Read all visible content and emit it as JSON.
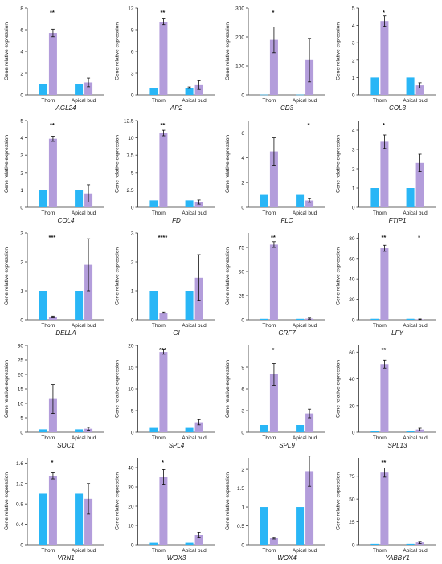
{
  "figure": {
    "ylabel": "Gene relative expression",
    "categories": [
      "Thorn",
      "Apical bud"
    ],
    "colors": {
      "control": "#29B6F6",
      "treatment": "#B39DDB",
      "axis": "#333333",
      "text": "#111111"
    }
  },
  "chart_data": [
    {
      "type": "bar",
      "title": "AGL24",
      "categories": [
        "Thorn",
        "Apical bud"
      ],
      "ylabel": "Gene relative expression",
      "ylim": [
        0,
        8
      ],
      "yticks": [
        0,
        2,
        4,
        6,
        8
      ],
      "series": [
        {
          "values": [
            1.0,
            1.0
          ],
          "errors": [
            0,
            0
          ]
        },
        {
          "values": [
            5.7,
            1.15
          ],
          "errors": [
            0.35,
            0.4
          ]
        }
      ],
      "significance": [
        "**",
        ""
      ]
    },
    {
      "type": "bar",
      "title": "AP2",
      "categories": [
        "Thorn",
        "Apical bud"
      ],
      "ylabel": "Gene relative expression",
      "ylim": [
        0,
        12
      ],
      "yticks": [
        0,
        3,
        6,
        9,
        12
      ],
      "series": [
        {
          "values": [
            1.0,
            1.0
          ],
          "errors": [
            0,
            0.1
          ]
        },
        {
          "values": [
            10.1,
            1.35
          ],
          "errors": [
            0.4,
            0.6
          ]
        }
      ],
      "significance": [
        "**",
        ""
      ]
    },
    {
      "type": "bar",
      "title": "CD3",
      "categories": [
        "Thorn",
        "Apical bud"
      ],
      "ylabel": "Gene relative expression",
      "ylim": [
        0,
        300
      ],
      "yticks": [
        0,
        100,
        200,
        300
      ],
      "series": [
        {
          "values": [
            1.0,
            1.0
          ],
          "errors": [
            0,
            0
          ]
        },
        {
          "values": [
            190,
            120
          ],
          "errors": [
            45,
            75
          ]
        }
      ],
      "significance": [
        "*",
        ""
      ]
    },
    {
      "type": "bar",
      "title": "COL3",
      "categories": [
        "Thorn",
        "Apical bud"
      ],
      "ylabel": "Gene relative expression",
      "ylim": [
        0,
        5
      ],
      "yticks": [
        0,
        1,
        2,
        3,
        4,
        5
      ],
      "series": [
        {
          "values": [
            1.0,
            1.0
          ],
          "errors": [
            0,
            0
          ]
        },
        {
          "values": [
            4.25,
            0.55
          ],
          "errors": [
            0.3,
            0.15
          ]
        }
      ],
      "significance": [
        "*",
        ""
      ]
    },
    {
      "type": "bar",
      "title": "COL4",
      "categories": [
        "Thorn",
        "Apical bud"
      ],
      "ylabel": "Gene relative expression",
      "ylim": [
        0,
        5
      ],
      "yticks": [
        0,
        1,
        2,
        3,
        4,
        5
      ],
      "series": [
        {
          "values": [
            1.0,
            1.0
          ],
          "errors": [
            0,
            0
          ]
        },
        {
          "values": [
            3.95,
            0.8
          ],
          "errors": [
            0.15,
            0.5
          ]
        }
      ],
      "significance": [
        "**",
        ""
      ]
    },
    {
      "type": "bar",
      "title": "FD",
      "categories": [
        "Thorn",
        "Apical bud"
      ],
      "ylabel": "Gene relative expression",
      "ylim": [
        0,
        12.5
      ],
      "yticks": [
        0,
        2.5,
        5.0,
        7.5,
        10.0,
        12.5
      ],
      "series": [
        {
          "values": [
            1.0,
            1.0
          ],
          "errors": [
            0,
            0
          ]
        },
        {
          "values": [
            10.7,
            0.75
          ],
          "errors": [
            0.4,
            0.3
          ]
        }
      ],
      "significance": [
        "**",
        ""
      ]
    },
    {
      "type": "bar",
      "title": "FLC",
      "categories": [
        "Thorn",
        "Apical bud"
      ],
      "ylabel": "Gene relative expression",
      "ylim": [
        0,
        7
      ],
      "yticks": [
        0,
        2,
        4,
        6
      ],
      "series": [
        {
          "values": [
            1.0,
            1.0
          ],
          "errors": [
            0,
            0
          ]
        },
        {
          "values": [
            4.5,
            0.55
          ],
          "errors": [
            1.1,
            0.15
          ]
        }
      ],
      "significance": [
        "",
        "*"
      ]
    },
    {
      "type": "bar",
      "title": "FTIP1",
      "categories": [
        "Thorn",
        "Apical bud"
      ],
      "ylabel": "Gene relative expression",
      "ylim": [
        0,
        4.5
      ],
      "yticks": [
        0,
        1,
        2,
        3,
        4
      ],
      "series": [
        {
          "values": [
            1.0,
            1.0
          ],
          "errors": [
            0,
            0
          ]
        },
        {
          "values": [
            3.4,
            2.3
          ],
          "errors": [
            0.35,
            0.45
          ]
        }
      ],
      "significance": [
        "*",
        ""
      ]
    },
    {
      "type": "bar",
      "title": "DELLA",
      "categories": [
        "Thorn",
        "Apical bud"
      ],
      "ylabel": "Gene relative expression",
      "ylim": [
        0,
        3
      ],
      "yticks": [
        0,
        1,
        2,
        3
      ],
      "series": [
        {
          "values": [
            1.0,
            1.0
          ],
          "errors": [
            0,
            0
          ]
        },
        {
          "values": [
            0.1,
            1.9
          ],
          "errors": [
            0.03,
            0.9
          ]
        }
      ],
      "significance": [
        "***",
        ""
      ]
    },
    {
      "type": "bar",
      "title": "GI",
      "categories": [
        "Thorn",
        "Apical bud"
      ],
      "ylabel": "Gene relative expression",
      "ylim": [
        0,
        3
      ],
      "yticks": [
        0,
        1,
        2,
        3
      ],
      "series": [
        {
          "values": [
            1.0,
            1.0
          ],
          "errors": [
            0,
            0
          ]
        },
        {
          "values": [
            0.25,
            1.45
          ],
          "errors": [
            0.02,
            0.8
          ]
        }
      ],
      "significance": [
        "****",
        ""
      ]
    },
    {
      "type": "bar",
      "title": "GRF7",
      "categories": [
        "Thorn",
        "Apical bud"
      ],
      "ylabel": "Gene relative expression",
      "ylim": [
        0,
        90
      ],
      "yticks": [
        0,
        25,
        50,
        75
      ],
      "series": [
        {
          "values": [
            1.0,
            1.0
          ],
          "errors": [
            0,
            0
          ]
        },
        {
          "values": [
            78,
            1.2
          ],
          "errors": [
            3,
            0.6
          ]
        }
      ],
      "significance": [
        "**",
        ""
      ]
    },
    {
      "type": "bar",
      "title": "LFY",
      "categories": [
        "Thorn",
        "Apical bud"
      ],
      "ylabel": "Gene relative expression",
      "ylim": [
        0,
        85
      ],
      "yticks": [
        0,
        20,
        40,
        60,
        80
      ],
      "series": [
        {
          "values": [
            1.0,
            1.0
          ],
          "errors": [
            0,
            0
          ]
        },
        {
          "values": [
            70,
            0.5
          ],
          "errors": [
            3,
            0.3
          ]
        }
      ],
      "significance": [
        "**",
        "*"
      ]
    },
    {
      "type": "bar",
      "title": "SOC1",
      "categories": [
        "Thorn",
        "Apical bud"
      ],
      "ylabel": "Gene relative expression",
      "ylim": [
        0,
        30
      ],
      "yticks": [
        0,
        5,
        10,
        15,
        20,
        25,
        30
      ],
      "series": [
        {
          "values": [
            1.0,
            1.0
          ],
          "errors": [
            0,
            0
          ]
        },
        {
          "values": [
            11.5,
            1.2
          ],
          "errors": [
            5,
            0.5
          ]
        }
      ],
      "significance": [
        "",
        ""
      ]
    },
    {
      "type": "bar",
      "title": "SPL4",
      "categories": [
        "Thorn",
        "Apical bud"
      ],
      "ylabel": "Gene relative expression",
      "ylim": [
        0,
        20
      ],
      "yticks": [
        0,
        5,
        10,
        15,
        20
      ],
      "series": [
        {
          "values": [
            1.0,
            1.0
          ],
          "errors": [
            0,
            0
          ]
        },
        {
          "values": [
            18.5,
            2.3
          ],
          "errors": [
            0.5,
            0.6
          ]
        }
      ],
      "significance": [
        "***",
        ""
      ]
    },
    {
      "type": "bar",
      "title": "SPL9",
      "categories": [
        "Thorn",
        "Apical bud"
      ],
      "ylabel": "Gene relative expression",
      "ylim": [
        0,
        12
      ],
      "yticks": [
        0,
        3,
        6,
        9
      ],
      "series": [
        {
          "values": [
            1.0,
            1.0
          ],
          "errors": [
            0,
            0
          ]
        },
        {
          "values": [
            8.0,
            2.6
          ],
          "errors": [
            1.5,
            0.6
          ]
        }
      ],
      "significance": [
        "*",
        ""
      ]
    },
    {
      "type": "bar",
      "title": "SPL13",
      "categories": [
        "Thorn",
        "Apical bud"
      ],
      "ylabel": "Gene relative expression",
      "ylim": [
        0,
        65
      ],
      "yticks": [
        0,
        20,
        40,
        60
      ],
      "series": [
        {
          "values": [
            1.0,
            1.0
          ],
          "errors": [
            0,
            0
          ]
        },
        {
          "values": [
            51,
            2.0
          ],
          "errors": [
            3,
            1
          ]
        }
      ],
      "significance": [
        "**",
        ""
      ]
    },
    {
      "type": "bar",
      "title": "VRN1",
      "categories": [
        "Thorn",
        "Apical bud"
      ],
      "ylabel": "Gene relative expression",
      "ylim": [
        0,
        1.7
      ],
      "yticks": [
        0,
        0.4,
        0.8,
        1.2,
        1.6
      ],
      "series": [
        {
          "values": [
            1.0,
            1.0
          ],
          "errors": [
            0,
            0
          ]
        },
        {
          "values": [
            1.35,
            0.9
          ],
          "errors": [
            0.06,
            0.3
          ]
        }
      ],
      "significance": [
        "*",
        ""
      ]
    },
    {
      "type": "bar",
      "title": "WOX3",
      "categories": [
        "Thorn",
        "Apical bud"
      ],
      "ylabel": "Gene relative expression",
      "ylim": [
        0,
        45
      ],
      "yticks": [
        0,
        10,
        20,
        30,
        40
      ],
      "series": [
        {
          "values": [
            1.0,
            1.0
          ],
          "errors": [
            0,
            0
          ]
        },
        {
          "values": [
            35,
            5
          ],
          "errors": [
            4,
            1.5
          ]
        }
      ],
      "significance": [
        "*",
        ""
      ]
    },
    {
      "type": "bar",
      "title": "WOX4",
      "categories": [
        "Thorn",
        "Apical bud"
      ],
      "ylabel": "Gene relative expression",
      "ylim": [
        0,
        2.3
      ],
      "yticks": [
        0,
        0.5,
        1.0,
        1.5,
        2.0
      ],
      "series": [
        {
          "values": [
            1.0,
            1.0
          ],
          "errors": [
            0,
            0
          ]
        },
        {
          "values": [
            0.17,
            1.95
          ],
          "errors": [
            0.02,
            0.4
          ]
        }
      ],
      "significance": [
        "",
        ""
      ]
    },
    {
      "type": "bar",
      "title": "YABBY1",
      "categories": [
        "Thorn",
        "Apical bud"
      ],
      "ylabel": "Gene relative expression",
      "ylim": [
        0,
        95
      ],
      "yticks": [
        0,
        25,
        50,
        75
      ],
      "series": [
        {
          "values": [
            1.0,
            1.0
          ],
          "errors": [
            0,
            0
          ]
        },
        {
          "values": [
            79,
            2.5
          ],
          "errors": [
            5,
            1.2
          ]
        }
      ],
      "significance": [
        "**",
        ""
      ]
    }
  ]
}
